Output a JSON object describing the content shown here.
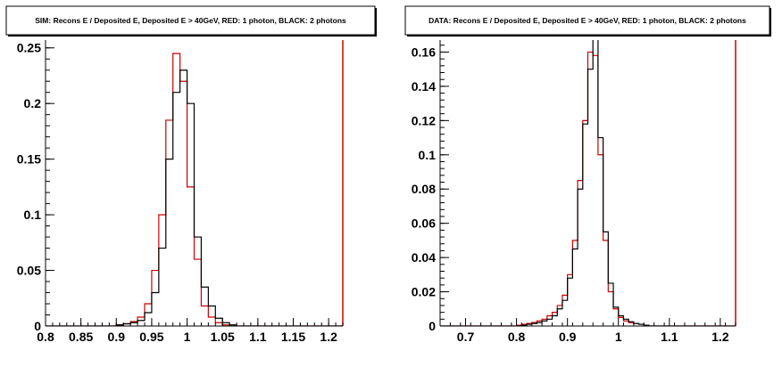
{
  "chart_data": [
    {
      "type": "histogram",
      "title": "SIM: Recons E / Deposited E, Deposited E > 40GeV, RED: 1 photon, BLACK: 2 photons",
      "xlabel": "",
      "ylabel": "",
      "xlim": [
        0.8,
        1.22
      ],
      "ylim": [
        0,
        0.257
      ],
      "x_ticks": [
        0.8,
        0.85,
        0.9,
        0.95,
        1,
        1.05,
        1.1,
        1.15,
        1.2
      ],
      "x_tick_labels": [
        "0.8",
        "0.85",
        "0.9",
        "0.95",
        "1",
        "1.05",
        "1.1",
        "1.15",
        "1.2"
      ],
      "y_ticks": [
        0,
        0.05,
        0.1,
        0.15,
        0.2,
        0.25
      ],
      "y_tick_labels": [
        "0",
        "0.05",
        "0.1",
        "0.15",
        "0.2",
        "0.25"
      ],
      "bin_edges": [
        0.8,
        0.81,
        0.82,
        0.83,
        0.84,
        0.85,
        0.86,
        0.87,
        0.88,
        0.89,
        0.9,
        0.91,
        0.92,
        0.93,
        0.94,
        0.95,
        0.96,
        0.97,
        0.98,
        0.99,
        1.0,
        1.01,
        1.02,
        1.03,
        1.04,
        1.05,
        1.06,
        1.07,
        1.08,
        1.09,
        1.1,
        1.11,
        1.12,
        1.13,
        1.14,
        1.15,
        1.16,
        1.17,
        1.18,
        1.19,
        1.2,
        1.21,
        1.22
      ],
      "colors": {
        "red": "#cc0000",
        "black": "#000000"
      },
      "series": [
        {
          "color": "red",
          "values": [
            0,
            0,
            0,
            0,
            0,
            0,
            0,
            0,
            0,
            0,
            0.001,
            0.002,
            0.004,
            0.008,
            0.02,
            0.05,
            0.1,
            0.185,
            0.245,
            0.22,
            0.125,
            0.06,
            0.018,
            0.008,
            0.003,
            0.001,
            0,
            0,
            0,
            0,
            0,
            0,
            0,
            0,
            0,
            0,
            0,
            0,
            0,
            0,
            0,
            0
          ]
        },
        {
          "color": "black",
          "values": [
            0,
            0,
            0,
            0,
            0,
            0,
            0,
            0,
            0,
            0,
            0.001,
            0.002,
            0.003,
            0.005,
            0.012,
            0.03,
            0.07,
            0.15,
            0.21,
            0.23,
            0.2,
            0.08,
            0.035,
            0.018,
            0.007,
            0.003,
            0.001,
            0,
            0,
            0,
            0,
            0,
            0,
            0,
            0,
            0,
            0,
            0,
            0,
            0,
            0,
            0
          ]
        }
      ]
    },
    {
      "type": "histogram",
      "title": "DATA: Recons E / Deposited E, Deposited E > 40GeV, RED: 1 photon, BLACK: 2 photons",
      "xlabel": "",
      "ylabel": "",
      "xlim": [
        0.65,
        1.23
      ],
      "ylim": [
        0,
        0.167
      ],
      "x_ticks": [
        0.7,
        0.8,
        0.9,
        1,
        1.1,
        1.2
      ],
      "x_tick_labels": [
        "0.7",
        "0.8",
        "0.9",
        "1",
        "1.1",
        "1.2"
      ],
      "y_ticks": [
        0,
        0.02,
        0.04,
        0.06,
        0.08,
        0.1,
        0.12,
        0.14,
        0.16
      ],
      "y_tick_labels": [
        "0",
        "0.02",
        "0.04",
        "0.06",
        "0.08",
        "0.1",
        "0.12",
        "0.14",
        "0.16"
      ],
      "bin_edges": [
        0.65,
        0.66,
        0.67,
        0.68,
        0.69,
        0.7,
        0.71,
        0.72,
        0.73,
        0.74,
        0.75,
        0.76,
        0.77,
        0.78,
        0.79,
        0.8,
        0.81,
        0.82,
        0.83,
        0.84,
        0.85,
        0.86,
        0.87,
        0.88,
        0.89,
        0.9,
        0.91,
        0.92,
        0.93,
        0.94,
        0.95,
        0.96,
        0.97,
        0.98,
        0.99,
        1.0,
        1.01,
        1.02,
        1.03,
        1.04,
        1.05,
        1.06,
        1.07,
        1.08,
        1.09,
        1.1,
        1.11,
        1.12,
        1.13,
        1.14,
        1.15,
        1.16,
        1.17,
        1.18,
        1.19,
        1.2,
        1.21,
        1.22,
        1.23
      ],
      "colors": {
        "red": "#cc0000",
        "black": "#000000"
      },
      "series": [
        {
          "color": "red",
          "values": [
            0,
            0,
            0,
            0,
            0,
            0,
            0,
            0,
            0,
            0,
            0,
            0,
            0,
            0,
            0,
            0.0005,
            0.001,
            0.0015,
            0.002,
            0.003,
            0.004,
            0.006,
            0.008,
            0.012,
            0.018,
            0.03,
            0.05,
            0.085,
            0.12,
            0.16,
            0.158,
            0.1,
            0.05,
            0.02,
            0.01,
            0.005,
            0.003,
            0.002,
            0.0015,
            0.001,
            0.0005,
            0,
            0,
            0,
            0,
            0,
            0,
            0,
            0,
            0,
            0,
            0,
            0,
            0,
            0,
            0,
            0,
            0
          ]
        },
        {
          "color": "black",
          "values": [
            0,
            0,
            0,
            0,
            0,
            0,
            0,
            0,
            0,
            0,
            0,
            0,
            0,
            0,
            0,
            0,
            0.0005,
            0.001,
            0.0015,
            0.002,
            0.003,
            0.004,
            0.006,
            0.01,
            0.015,
            0.028,
            0.045,
            0.08,
            0.118,
            0.15,
            0.175,
            0.11,
            0.055,
            0.025,
            0.011,
            0.006,
            0.004,
            0.0025,
            0.0015,
            0.001,
            0.0005,
            0,
            0,
            0,
            0,
            0,
            0,
            0,
            0,
            0,
            0,
            0,
            0,
            0,
            0,
            0,
            0,
            0
          ]
        }
      ]
    }
  ]
}
